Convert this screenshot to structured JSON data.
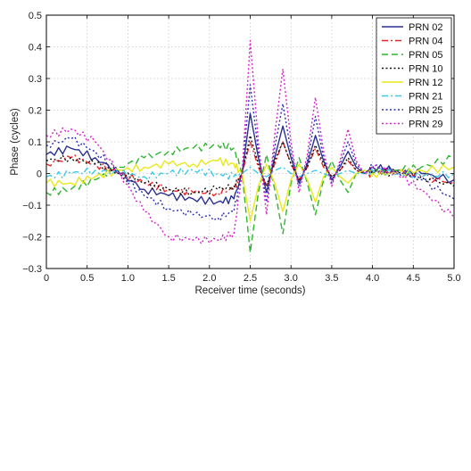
{
  "chart_data": {
    "type": "line",
    "xlabel": "Receiver time (seconds)",
    "ylabel": "Phase (cycles)",
    "xlim": [
      0,
      5
    ],
    "ylim": [
      -0.3,
      0.5
    ],
    "x_ticks": [
      0,
      0.5,
      1.0,
      1.5,
      2.0,
      2.5,
      3.0,
      3.5,
      4.0,
      4.5,
      5.0
    ],
    "x_tick_labels": [
      "0",
      "0.5",
      "1.0",
      "1.5",
      "2.0",
      "2.5",
      "3.0",
      "3.5",
      "4.0",
      "4.5",
      "5.0"
    ],
    "y_ticks": [
      -0.3,
      -0.2,
      -0.1,
      0,
      0.1,
      0.2,
      0.3,
      0.4,
      0.5
    ],
    "y_tick_labels": [
      "−0.3",
      "−0.2",
      "−0.1",
      "0",
      "0.1",
      "0.2",
      "0.3",
      "0.4",
      "0.5"
    ],
    "grid": true,
    "legend_position": "top-right",
    "series": [
      {
        "name": "PRN 02",
        "color": "#2b2f8f",
        "dash": "solid",
        "x": [
          0,
          0.3,
          0.6,
          0.9,
          1.2,
          1.5,
          1.8,
          2.1,
          2.3,
          2.4,
          2.5,
          2.6,
          2.7,
          2.8,
          2.9,
          3.0,
          3.1,
          3.2,
          3.3,
          3.4,
          3.5,
          3.6,
          3.7,
          3.8,
          3.9,
          4.0,
          4.3,
          4.6,
          5.0
        ],
        "y": [
          0.06,
          0.08,
          0.05,
          0.0,
          -0.05,
          -0.07,
          -0.08,
          -0.09,
          -0.08,
          0.0,
          0.19,
          0.05,
          -0.06,
          0.05,
          0.15,
          0.05,
          -0.03,
          0.03,
          0.12,
          0.04,
          -0.02,
          0.02,
          0.07,
          0.02,
          0.0,
          0.02,
          0.01,
          0.0,
          -0.02
        ]
      },
      {
        "name": "PRN 04",
        "color": "#e8242a",
        "dash": "dashdot",
        "x": [
          0,
          0.3,
          0.6,
          0.9,
          1.2,
          1.5,
          1.8,
          2.1,
          2.3,
          2.4,
          2.5,
          2.6,
          2.7,
          2.8,
          2.9,
          3.0,
          3.1,
          3.2,
          3.3,
          3.4,
          3.5,
          3.6,
          3.7,
          3.8,
          3.9,
          4.0,
          4.3,
          4.6,
          5.0
        ],
        "y": [
          0.03,
          0.05,
          0.03,
          0.0,
          -0.03,
          -0.05,
          -0.06,
          -0.06,
          -0.05,
          0.0,
          0.1,
          0.02,
          -0.04,
          0.03,
          0.1,
          0.03,
          -0.02,
          0.02,
          0.08,
          0.02,
          -0.01,
          0.01,
          0.04,
          0.01,
          0.0,
          0.0,
          0.01,
          -0.01,
          -0.03
        ]
      },
      {
        "name": "PRN 05",
        "color": "#2fb52f",
        "dash": "dash",
        "x": [
          0,
          0.3,
          0.6,
          0.9,
          1.2,
          1.5,
          1.8,
          2.1,
          2.3,
          2.4,
          2.5,
          2.6,
          2.7,
          2.8,
          2.9,
          3.0,
          3.1,
          3.2,
          3.3,
          3.4,
          3.5,
          3.6,
          3.7,
          3.8,
          3.9,
          4.0,
          4.3,
          4.6,
          5.0
        ],
        "y": [
          -0.06,
          -0.05,
          -0.02,
          0.02,
          0.05,
          0.07,
          0.08,
          0.09,
          0.08,
          0.0,
          -0.25,
          -0.06,
          0.06,
          -0.05,
          -0.19,
          -0.03,
          0.05,
          -0.03,
          -0.13,
          -0.02,
          0.04,
          -0.02,
          -0.06,
          0.0,
          0.01,
          0.0,
          0.01,
          0.02,
          0.05
        ]
      },
      {
        "name": "PRN 10",
        "color": "#111111",
        "dash": "dot",
        "x": [
          0,
          0.3,
          0.6,
          0.9,
          1.2,
          1.5,
          1.8,
          2.1,
          2.3,
          2.4,
          2.5,
          2.6,
          2.7,
          2.8,
          2.9,
          3.0,
          3.1,
          3.2,
          3.3,
          3.4,
          3.5,
          3.6,
          3.7,
          3.8,
          3.9,
          4.0,
          4.3,
          4.6,
          5.0
        ],
        "y": [
          0.04,
          0.05,
          0.03,
          0.0,
          -0.03,
          -0.05,
          -0.06,
          -0.05,
          -0.04,
          0.0,
          0.12,
          0.03,
          -0.04,
          0.04,
          0.1,
          0.03,
          -0.02,
          0.02,
          0.09,
          0.03,
          -0.01,
          0.01,
          0.05,
          0.01,
          0.0,
          0.01,
          0.0,
          -0.01,
          -0.04
        ]
      },
      {
        "name": "PRN 12",
        "color": "#e8e81a",
        "dash": "solid",
        "x": [
          0,
          0.3,
          0.6,
          0.9,
          1.2,
          1.5,
          1.8,
          2.1,
          2.3,
          2.4,
          2.5,
          2.6,
          2.7,
          2.8,
          2.9,
          3.0,
          3.1,
          3.2,
          3.3,
          3.4,
          3.5,
          3.6,
          3.7,
          3.8,
          3.9,
          4.0,
          4.3,
          4.6,
          5.0
        ],
        "y": [
          -0.03,
          -0.03,
          -0.01,
          0.01,
          0.02,
          0.03,
          0.03,
          0.04,
          0.03,
          0.0,
          -0.15,
          -0.04,
          0.03,
          -0.03,
          -0.12,
          -0.02,
          0.03,
          -0.02,
          -0.09,
          -0.01,
          0.02,
          -0.01,
          -0.03,
          0.0,
          0.01,
          0.0,
          0.0,
          0.01,
          0.02
        ]
      },
      {
        "name": "PRN 21",
        "color": "#3cc8e8",
        "dash": "dashdot",
        "x": [
          0,
          0.3,
          0.6,
          0.9,
          1.2,
          1.5,
          1.8,
          2.1,
          2.3,
          2.4,
          2.5,
          2.6,
          2.7,
          2.8,
          2.9,
          3.0,
          3.1,
          3.2,
          3.3,
          3.4,
          3.5,
          3.6,
          3.7,
          3.8,
          3.9,
          4.0,
          4.3,
          4.6,
          5.0
        ],
        "y": [
          -0.01,
          0.0,
          0.01,
          0.0,
          -0.01,
          0.0,
          0.01,
          0.0,
          -0.01,
          0.0,
          0.02,
          0.0,
          -0.01,
          0.01,
          0.02,
          0.0,
          -0.01,
          0.0,
          0.01,
          0.0,
          -0.01,
          0.0,
          0.01,
          0.0,
          0.0,
          0.01,
          0.0,
          -0.01,
          0.0
        ]
      },
      {
        "name": "PRN 25",
        "color": "#2b2fb5",
        "dash": "dot",
        "x": [
          0,
          0.3,
          0.6,
          0.9,
          1.2,
          1.5,
          1.8,
          2.1,
          2.3,
          2.4,
          2.5,
          2.6,
          2.7,
          2.8,
          2.9,
          3.0,
          3.1,
          3.2,
          3.3,
          3.4,
          3.5,
          3.6,
          3.7,
          3.8,
          3.9,
          4.0,
          4.3,
          4.6,
          5.0
        ],
        "y": [
          0.09,
          0.11,
          0.07,
          0.0,
          -0.07,
          -0.11,
          -0.13,
          -0.14,
          -0.12,
          0.0,
          0.28,
          0.07,
          -0.09,
          0.08,
          0.22,
          0.07,
          -0.04,
          0.04,
          0.18,
          0.05,
          -0.03,
          0.03,
          0.1,
          0.03,
          0.0,
          0.02,
          0.01,
          -0.02,
          -0.08
        ]
      },
      {
        "name": "PRN 29",
        "color": "#d81fc8",
        "dash": "dot",
        "x": [
          0,
          0.3,
          0.6,
          0.9,
          1.2,
          1.5,
          1.8,
          2.1,
          2.3,
          2.4,
          2.5,
          2.6,
          2.7,
          2.8,
          2.9,
          3.0,
          3.1,
          3.2,
          3.3,
          3.4,
          3.5,
          3.6,
          3.7,
          3.8,
          3.9,
          4.0,
          4.3,
          4.6,
          5.0
        ],
        "y": [
          0.12,
          0.14,
          0.1,
          0.0,
          -0.12,
          -0.2,
          -0.21,
          -0.21,
          -0.19,
          0.0,
          0.42,
          0.1,
          -0.13,
          0.12,
          0.33,
          0.1,
          -0.06,
          0.06,
          0.24,
          0.07,
          -0.04,
          0.04,
          0.14,
          0.04,
          0.0,
          0.02,
          0.0,
          -0.05,
          -0.14
        ]
      }
    ]
  }
}
